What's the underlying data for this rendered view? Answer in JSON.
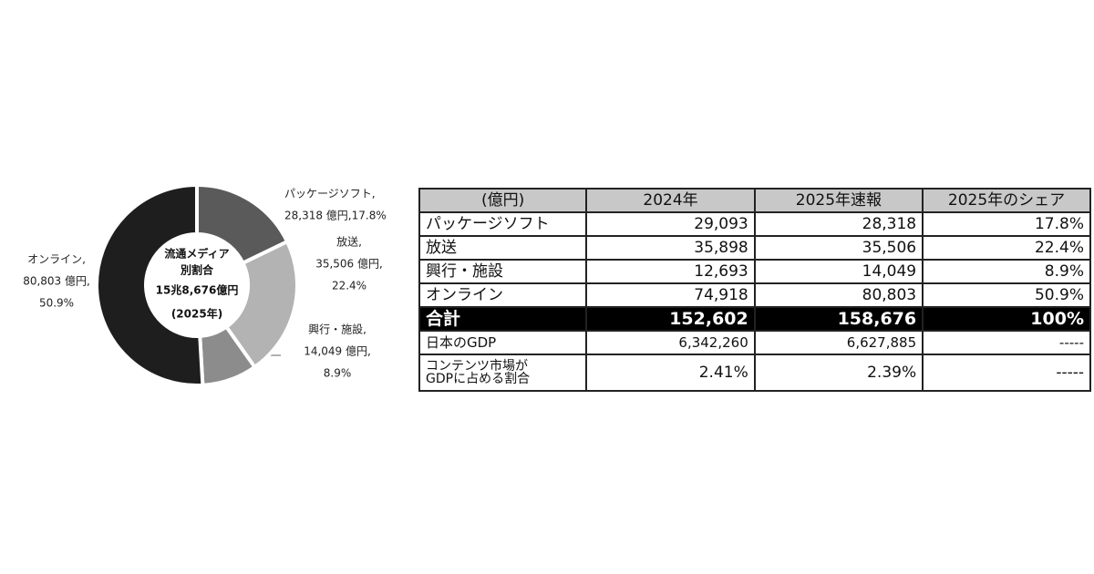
{
  "chart_data": {
    "type": "pie",
    "center_text": [
      "流通メディア",
      "別割合",
      "15兆8,676億円",
      "(2025年)"
    ],
    "categories": [
      "パッケージソフト,",
      "放送,",
      "興行・施設,",
      "オンライン,"
    ],
    "values": [
      28318,
      35506,
      14049,
      80803
    ],
    "value_labels": [
      [
        "28,318 億円,17.8%"
      ],
      [
        "35,506 億円,",
        "22.4%"
      ],
      [
        "14,049 億円,",
        "8.9%"
      ],
      [
        "80,803 億円,",
        "50.9%"
      ]
    ],
    "colors": [
      "#5a5a5a",
      "#b3b3b3",
      "#8c8c8c",
      "#1e1e1e"
    ]
  },
  "table": {
    "header": [
      "(億円)",
      "2024年",
      "2025年速報",
      "2025年のシェア"
    ],
    "rows": [
      [
        "パッケージソフト",
        "29,093",
        "28,318",
        "17.8%"
      ],
      [
        "放送",
        "35,898",
        "35,506",
        "22.4%"
      ],
      [
        "興行・施設",
        "12,693",
        "14,049",
        "8.9%"
      ],
      [
        "オンライン",
        "74,918",
        "80,803",
        "50.9%"
      ],
      [
        "合計",
        "152,602",
        "158,676",
        "100%"
      ],
      [
        "日本のGDP",
        "6,342,260",
        "6,627,885",
        "-----"
      ],
      [
        "コンテンツ市場が\nGDPに占める割合",
        "2.41%",
        "2.39%",
        "-----"
      ]
    ]
  }
}
